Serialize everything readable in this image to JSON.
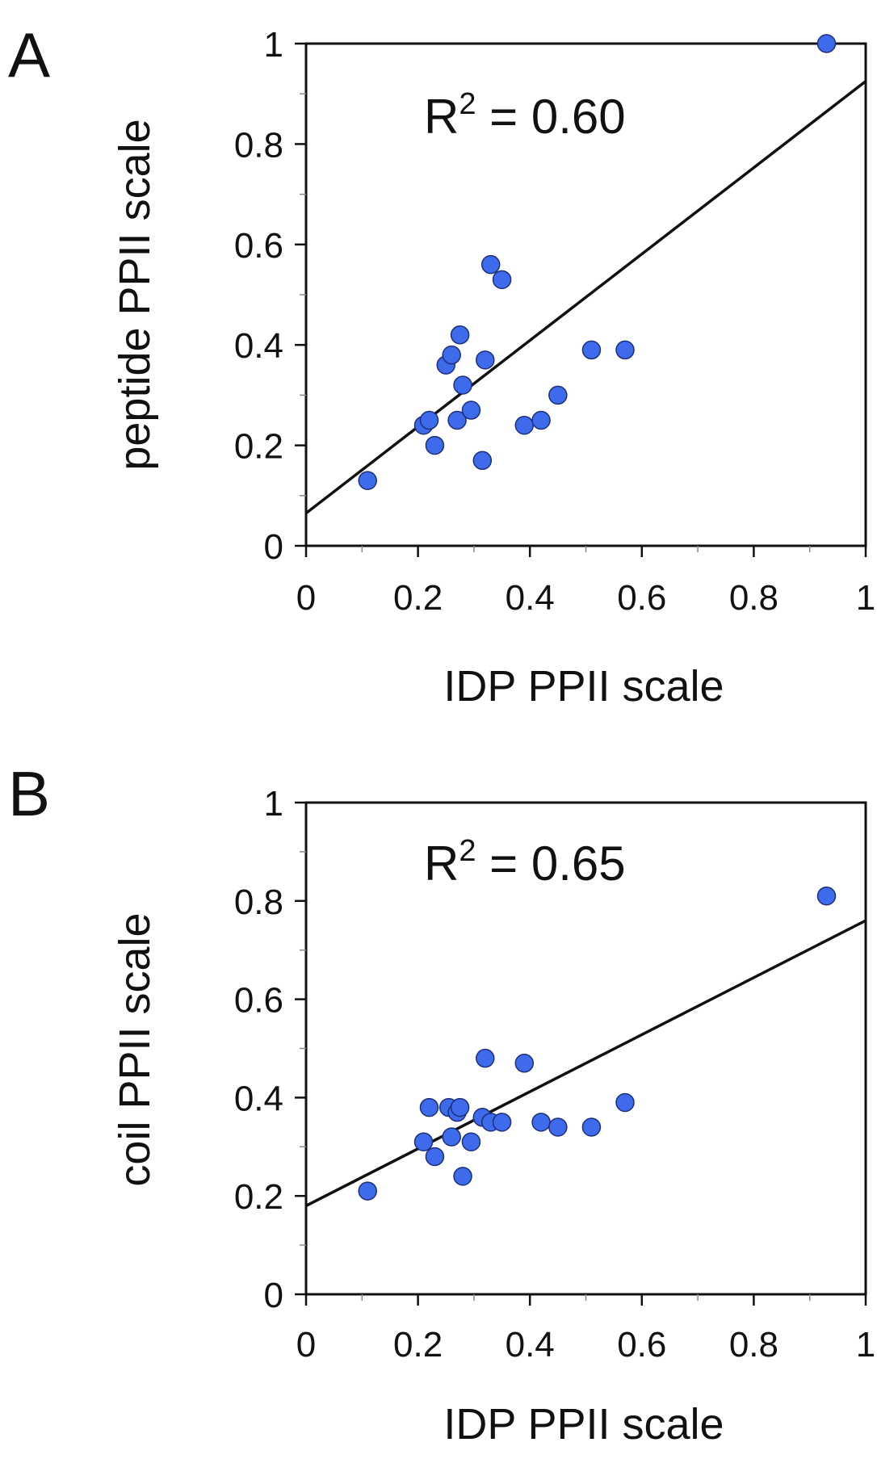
{
  "chart_data": [
    {
      "type": "scatter",
      "panel": "A",
      "annotation": {
        "r2_label": "R",
        "r2_exp": "2",
        "r2_value": " = 0.60"
      },
      "xlabel": "IDP PPII scale",
      "ylabel": "peptide PPII scale",
      "xlim": [
        0,
        1
      ],
      "ylim": [
        0,
        1
      ],
      "xticks": [
        "0",
        "0.2",
        "0.4",
        "0.6",
        "0.8",
        "1"
      ],
      "yticks": [
        "0",
        "0.2",
        "0.4",
        "0.6",
        "0.8",
        "1"
      ],
      "fit_line": {
        "x": [
          0,
          1.0
        ],
        "y": [
          0.065,
          0.925
        ]
      },
      "points": [
        {
          "x": 0.11,
          "y": 0.13
        },
        {
          "x": 0.21,
          "y": 0.24
        },
        {
          "x": 0.22,
          "y": 0.25
        },
        {
          "x": 0.23,
          "y": 0.2
        },
        {
          "x": 0.25,
          "y": 0.36
        },
        {
          "x": 0.26,
          "y": 0.38
        },
        {
          "x": 0.27,
          "y": 0.25
        },
        {
          "x": 0.275,
          "y": 0.42
        },
        {
          "x": 0.28,
          "y": 0.32
        },
        {
          "x": 0.295,
          "y": 0.27
        },
        {
          "x": 0.315,
          "y": 0.17
        },
        {
          "x": 0.32,
          "y": 0.37
        },
        {
          "x": 0.33,
          "y": 0.56
        },
        {
          "x": 0.35,
          "y": 0.53
        },
        {
          "x": 0.39,
          "y": 0.24
        },
        {
          "x": 0.42,
          "y": 0.25
        },
        {
          "x": 0.45,
          "y": 0.3
        },
        {
          "x": 0.51,
          "y": 0.39
        },
        {
          "x": 0.57,
          "y": 0.39
        },
        {
          "x": 0.93,
          "y": 1.0
        }
      ]
    },
    {
      "type": "scatter",
      "panel": "B",
      "annotation": {
        "r2_label": "R",
        "r2_exp": "2",
        "r2_value": " = 0.65"
      },
      "xlabel": "IDP PPII scale",
      "ylabel": "coil PPII scale",
      "xlim": [
        0,
        1
      ],
      "ylim": [
        0,
        1
      ],
      "xticks": [
        "0",
        "0.2",
        "0.4",
        "0.6",
        "0.8",
        "1"
      ],
      "yticks": [
        "0",
        "0.2",
        "0.4",
        "0.6",
        "0.8",
        "1"
      ],
      "fit_line": {
        "x": [
          0,
          1.0
        ],
        "y": [
          0.18,
          0.76
        ]
      },
      "points": [
        {
          "x": 0.11,
          "y": 0.21
        },
        {
          "x": 0.21,
          "y": 0.31
        },
        {
          "x": 0.22,
          "y": 0.38
        },
        {
          "x": 0.23,
          "y": 0.28
        },
        {
          "x": 0.255,
          "y": 0.38
        },
        {
          "x": 0.26,
          "y": 0.32
        },
        {
          "x": 0.27,
          "y": 0.37
        },
        {
          "x": 0.275,
          "y": 0.38
        },
        {
          "x": 0.28,
          "y": 0.24
        },
        {
          "x": 0.295,
          "y": 0.31
        },
        {
          "x": 0.315,
          "y": 0.36
        },
        {
          "x": 0.32,
          "y": 0.48
        },
        {
          "x": 0.33,
          "y": 0.35
        },
        {
          "x": 0.35,
          "y": 0.35
        },
        {
          "x": 0.39,
          "y": 0.47
        },
        {
          "x": 0.42,
          "y": 0.35
        },
        {
          "x": 0.45,
          "y": 0.34
        },
        {
          "x": 0.51,
          "y": 0.34
        },
        {
          "x": 0.57,
          "y": 0.39
        },
        {
          "x": 0.93,
          "y": 0.81
        }
      ]
    }
  ]
}
